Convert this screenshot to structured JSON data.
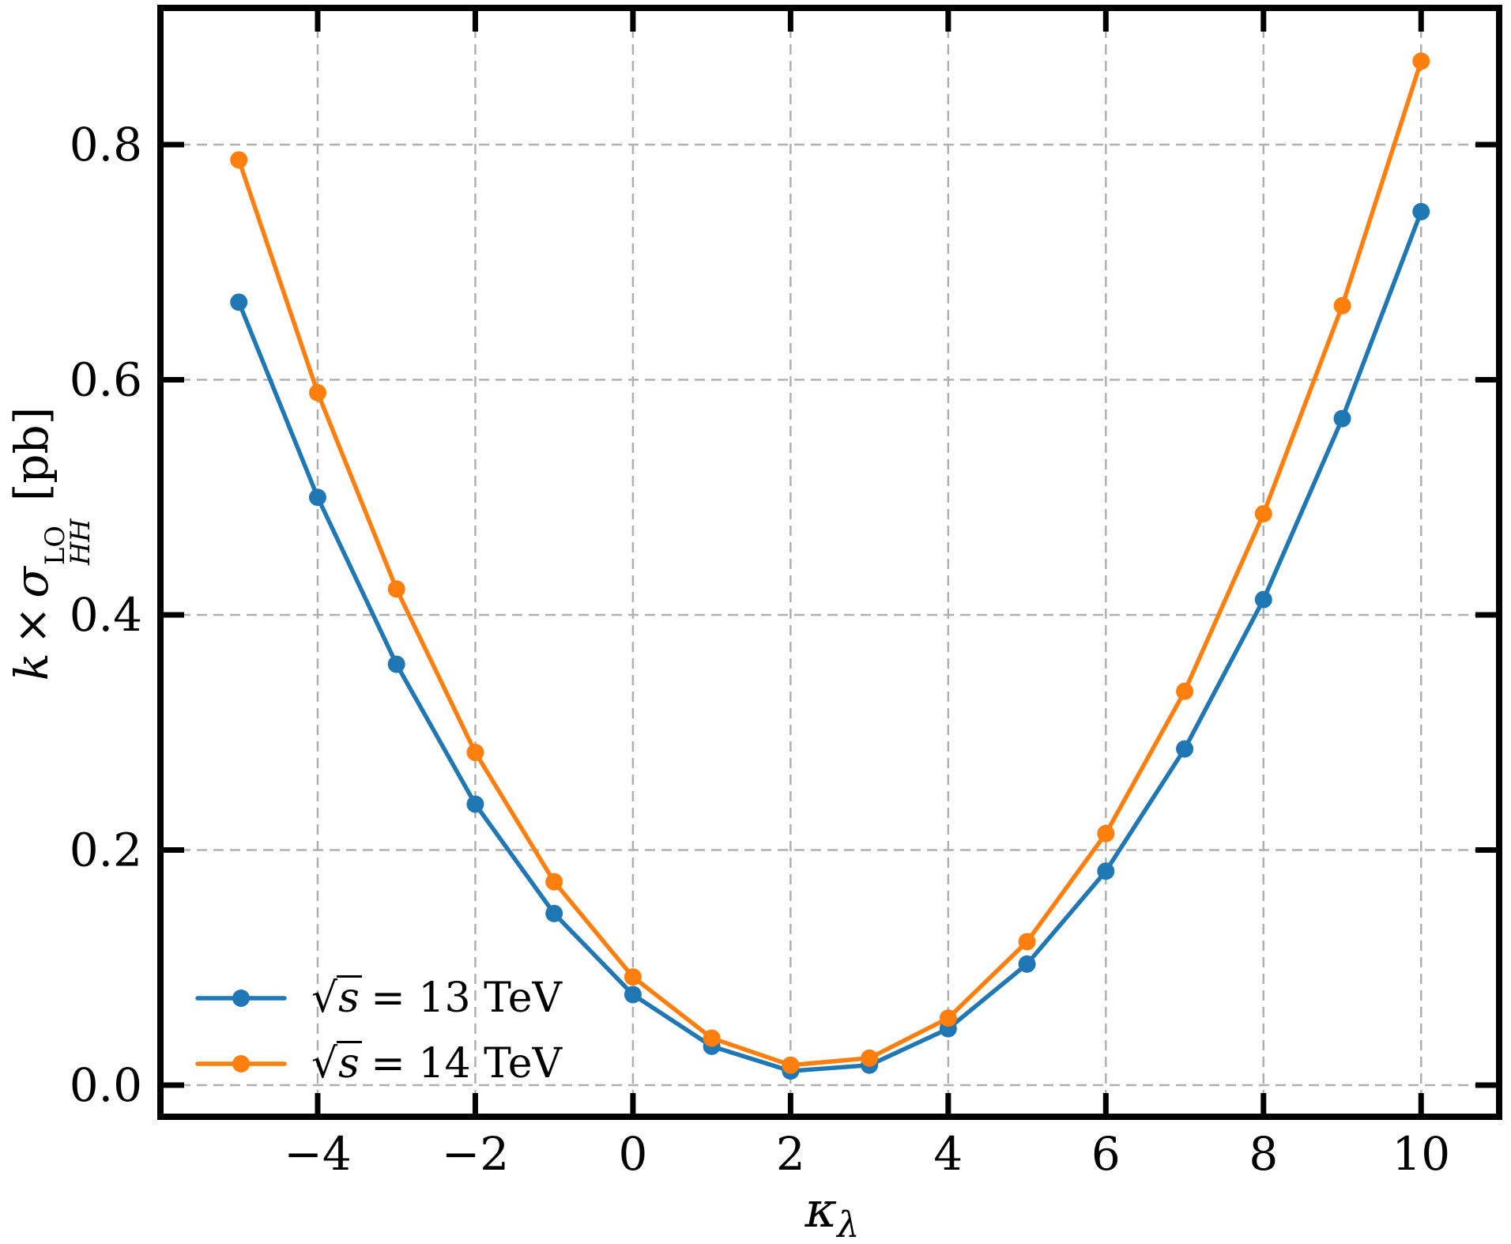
{
  "chart_data": {
    "type": "line",
    "title": "",
    "xlabel": "kappa_lambda",
    "ylabel": "k x sigma_HH^LO [pb]",
    "x": [
      -5,
      -4,
      -3,
      -2,
      -1,
      0,
      1,
      2,
      3,
      4,
      5,
      6,
      7,
      8,
      9,
      10
    ],
    "series": [
      {
        "name": "sqrt(s) = 13 TeV",
        "color": "#1f77b4",
        "values": [
          0.666,
          0.5,
          0.358,
          0.239,
          0.146,
          0.077,
          0.033,
          0.012,
          0.017,
          0.048,
          0.103,
          0.182,
          0.286,
          0.413,
          0.567,
          0.743
        ]
      },
      {
        "name": "sqrt(s) = 14 TeV",
        "color": "#ff7f0e",
        "values": [
          0.787,
          0.589,
          0.422,
          0.283,
          0.173,
          0.092,
          0.04,
          0.017,
          0.023,
          0.057,
          0.122,
          0.214,
          0.335,
          0.486,
          0.663,
          0.871
        ]
      }
    ],
    "xlim": [
      -5.995,
      10.99
    ],
    "ylim": [
      -0.0269,
      0.9163
    ],
    "xticks": [
      -4,
      -2,
      0,
      2,
      4,
      6,
      8,
      10
    ],
    "yticks": [
      0.0,
      0.2,
      0.4,
      0.6,
      0.8
    ],
    "ytick_labels": [
      "0.0",
      "0.2",
      "0.4",
      "0.6",
      "0.8"
    ],
    "grid": true,
    "gridline_color": "#b0b0b0",
    "axis_color": "#000000",
    "legend_position": "lower left",
    "xlabel_parts": {
      "symbol": "κ",
      "subscript": "λ"
    },
    "ylabel_parts": {
      "k": "k",
      "times": "×",
      "sigma": "σ",
      "sup": "LO",
      "sub": "HH",
      "unit": "[pb]"
    },
    "legend": [
      {
        "sqrt_symbol": "√",
        "sqrt_arg": "s",
        "rest": "= 13 TeV",
        "color": "#1f77b4",
        "full_label": "√s = 13 TeV"
      },
      {
        "sqrt_symbol": "√",
        "sqrt_arg": "s",
        "rest": "= 14 TeV",
        "color": "#ff7f0e",
        "full_label": "√s = 14 TeV"
      }
    ]
  }
}
